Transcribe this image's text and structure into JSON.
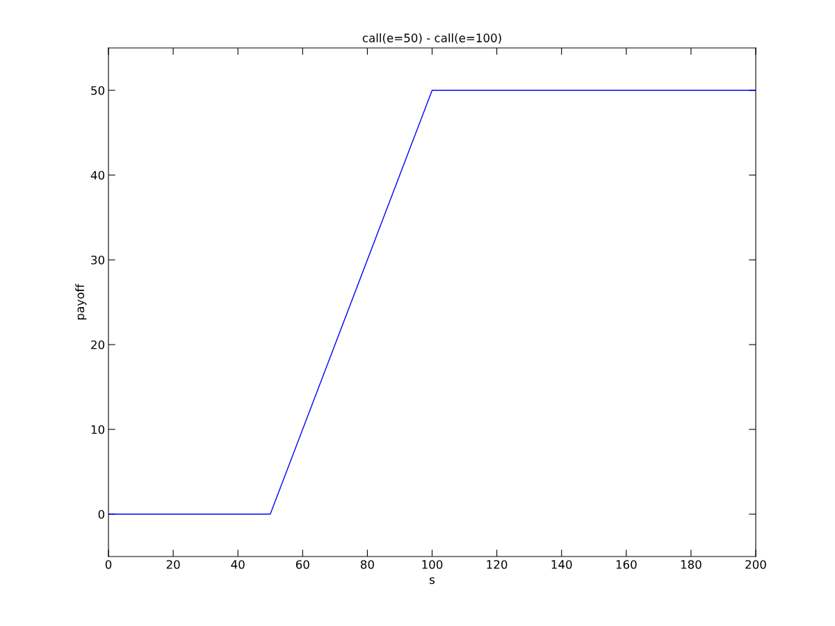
{
  "chart_data": {
    "type": "line",
    "title": "call(e=50) - call(e=100)",
    "xlabel": "s",
    "ylabel": "payoff",
    "x": [
      0,
      50,
      100,
      200
    ],
    "series": [
      {
        "color": "#0000ff",
        "values": [
          0,
          0,
          50,
          50
        ]
      }
    ],
    "xlim": [
      0,
      200
    ],
    "xticks": [
      0,
      20,
      40,
      60,
      80,
      100,
      120,
      140,
      160,
      180,
      200
    ],
    "ylim": [
      -5,
      55
    ],
    "yticks": [
      0,
      10,
      20,
      30,
      40,
      50
    ],
    "grid": false,
    "legend": false,
    "marker": "none",
    "line_style": "solid"
  }
}
